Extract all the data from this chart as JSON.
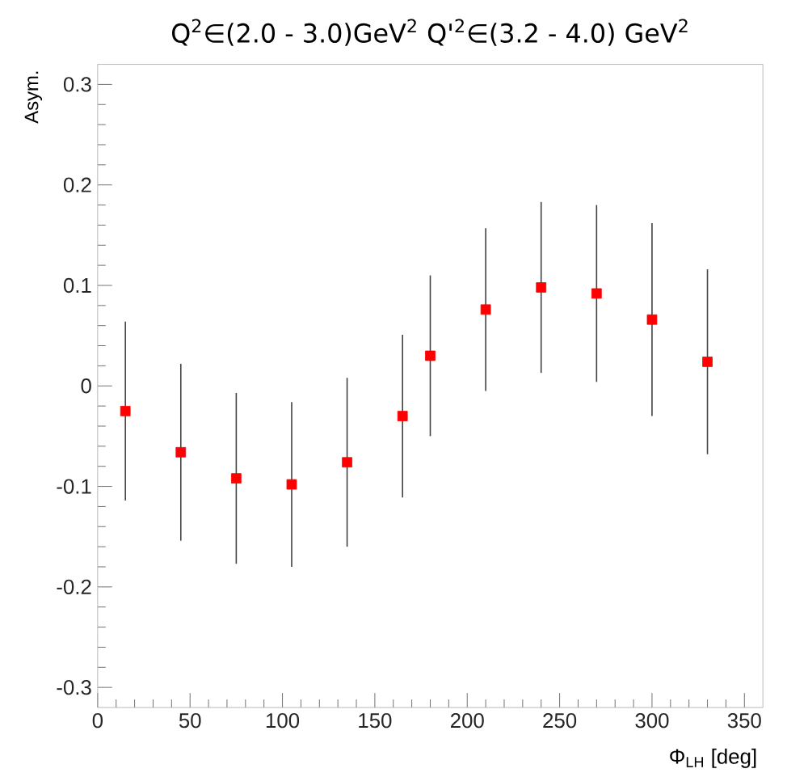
{
  "chart_data": {
    "type": "scatter",
    "title": "Q$^{2}$∈(2.0 - 3.0)GeV$^{2}$ Q'$^{2}$∈(3.2 - 4.0) GeV$^{2}$",
    "xlabel": "Φ$_{LH}$ [deg]",
    "ylabel": "Asym.",
    "x": [
      15,
      45,
      75,
      105,
      135,
      165,
      180,
      210,
      240,
      270,
      300,
      330
    ],
    "series": [
      {
        "color": "#ff0000",
        "values": [
          -0.025,
          -0.066,
          -0.092,
          -0.098,
          -0.076,
          -0.03,
          0.03,
          0.076,
          0.098,
          0.092,
          0.066,
          0.024
        ],
        "errors": [
          0.089,
          0.088,
          0.085,
          0.082,
          0.084,
          0.081,
          0.08,
          0.081,
          0.085,
          0.088,
          0.096,
          0.092
        ]
      }
    ],
    "xlim": [
      0,
      360
    ],
    "ylim": [
      -0.32,
      0.32
    ],
    "xticks": [
      0,
      50,
      100,
      150,
      200,
      250,
      300,
      350
    ],
    "yticks": [
      -0.3,
      -0.2,
      -0.1,
      0,
      0.1,
      0.2,
      0.3
    ],
    "marker": "square",
    "grid": false
  }
}
